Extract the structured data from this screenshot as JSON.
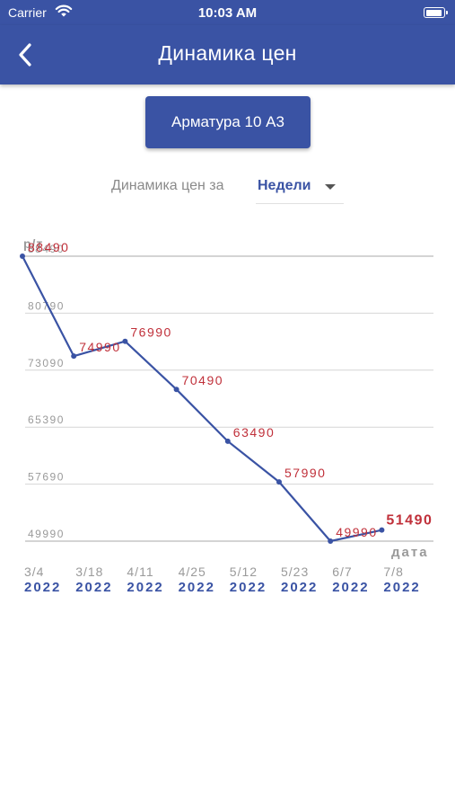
{
  "status_bar": {
    "carrier": "Carrier",
    "time": "10:03 AM"
  },
  "nav": {
    "title": "Динамика цен",
    "back_icon": "chevron-left-icon"
  },
  "product_button": {
    "label": "Арматура 10 А3"
  },
  "period": {
    "label": "Динамика цен за",
    "selected": "Недели"
  },
  "colors": {
    "primary": "#3a53a4",
    "value_label": "#c0303a",
    "grid": "#d6d6d6",
    "tick": "#9a9a9a"
  },
  "chart_data": {
    "type": "line",
    "ylabel": "р/т",
    "xlabel": "дата",
    "y_ticks": [
      88490,
      80790,
      73090,
      65390,
      57690,
      49990
    ],
    "ylim": [
      49990,
      88490
    ],
    "x": [
      {
        "date": "3/4",
        "year": "2022"
      },
      {
        "date": "3/18",
        "year": "2022"
      },
      {
        "date": "4/11",
        "year": "2022"
      },
      {
        "date": "4/25",
        "year": "2022"
      },
      {
        "date": "5/12",
        "year": "2022"
      },
      {
        "date": "5/23",
        "year": "2022"
      },
      {
        "date": "6/7",
        "year": "2022"
      },
      {
        "date": "7/8",
        "year": "2022"
      }
    ],
    "values": [
      88490,
      74990,
      76990,
      70490,
      63490,
      57990,
      49990,
      51490
    ],
    "value_labels": [
      "88490",
      "74990",
      "76990",
      "70490",
      "63490",
      "57990",
      "49990",
      "51490"
    ],
    "highlight_last": "51490"
  }
}
